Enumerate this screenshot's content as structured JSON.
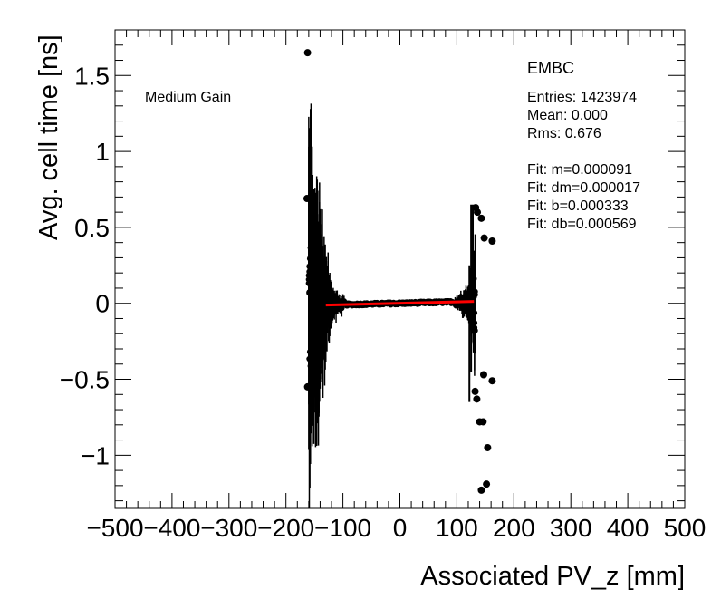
{
  "chart_data": {
    "type": "scatter",
    "xlabel": "Associated PV_z [mm]",
    "ylabel": "Avg. cell time [ns]",
    "xlim": [
      -500,
      500
    ],
    "ylim": [
      -1.35,
      1.8
    ],
    "x_ticks": [
      -500,
      -400,
      -300,
      -200,
      -100,
      0,
      100,
      200,
      300,
      400,
      500
    ],
    "x_tick_labels": [
      "−500",
      "−400",
      "−300",
      "−200",
      "−100",
      "0",
      "100",
      "200",
      "300",
      "400",
      "500"
    ],
    "y_ticks": [
      -1,
      -0.5,
      0,
      0.5,
      1,
      1.5
    ],
    "y_tick_labels": [
      "−1",
      "−0.5",
      "0",
      "0.5",
      "1",
      "1.5"
    ],
    "grid": false,
    "series_color": "#000000",
    "fit_color": "#ff0000",
    "label_left": "Medium Gain",
    "stats": {
      "title": "EMBC",
      "entries": "Entries: 1423974",
      "mean": "Mean: 0.000",
      "rms": "Rms: 0.676",
      "fit_m": "Fit: m=0.000091",
      "fit_dm": "Fit: dm=0.000017",
      "fit_b": "Fit: b=0.000333",
      "fit_db": "Fit: db=0.000569"
    },
    "fit": {
      "slope": 9.1e-05,
      "intercept": 0.000333,
      "x_range": [
        -130,
        130
      ]
    },
    "outliers": [
      {
        "x": -162,
        "y": 1.65
      },
      {
        "x": -163,
        "y": 0.69
      },
      {
        "x": -150,
        "y": 0.68
      },
      {
        "x": -162,
        "y": -0.55
      },
      {
        "x": -158,
        "y": 0.07
      },
      {
        "x": -155,
        "y": -0.21
      },
      {
        "x": 140,
        "y": -0.78
      },
      {
        "x": 146,
        "y": -0.78
      },
      {
        "x": 143,
        "y": -1.23
      },
      {
        "x": 152,
        "y": -1.19
      },
      {
        "x": 154,
        "y": -0.95
      },
      {
        "x": 148,
        "y": 0.43
      },
      {
        "x": 162,
        "y": 0.41
      },
      {
        "x": 147,
        "y": -0.47
      },
      {
        "x": 162,
        "y": -0.51
      },
      {
        "x": 132,
        "y": -0.58
      },
      {
        "x": 135,
        "y": -0.63
      },
      {
        "x": 136,
        "y": 0.6
      },
      {
        "x": 133,
        "y": 0.63
      },
      {
        "x": 143,
        "y": 0.56
      }
    ]
  }
}
